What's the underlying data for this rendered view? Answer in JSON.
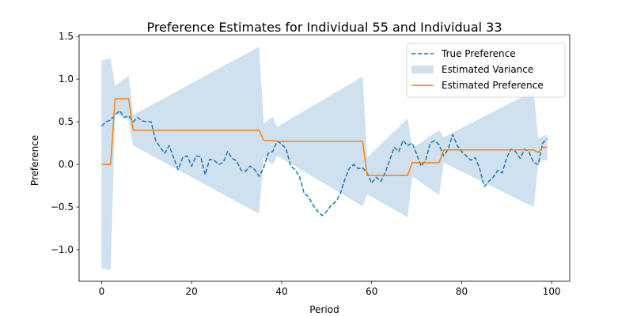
{
  "chart_data": {
    "type": "line",
    "title": "Preference Estimates for Individual 55 and Individual 33",
    "xlabel": "Period",
    "ylabel": "Preference",
    "xlim": [
      -5,
      104
    ],
    "ylim": [
      -1.37,
      1.52
    ],
    "x_ticks": [
      0,
      20,
      40,
      60,
      80,
      100
    ],
    "y_ticks": [
      1.5,
      1.0,
      0.5,
      0.0,
      -0.5,
      -1.0
    ],
    "x_tick_labels": [
      "0",
      "20",
      "40",
      "60",
      "80",
      "100"
    ],
    "y_tick_labels": [
      "1.5",
      "1.0",
      "0.5",
      "0.0",
      "−0.5",
      "−1.0"
    ],
    "grid": false,
    "legend_position": "top-right",
    "legend": [
      {
        "label": "True Preference",
        "kind": "dashed-line",
        "color": "#1f77b4"
      },
      {
        "label": "Estimated Variance",
        "kind": "patch",
        "color": "#cfe1ef"
      },
      {
        "label": "Estimated Preference",
        "kind": "line",
        "color": "#ff7f0e"
      }
    ],
    "series": [
      {
        "name": "True Preference",
        "style": "dashed",
        "color": "#1f77b4",
        "x": [
          0,
          1,
          2,
          3,
          4,
          5,
          6,
          7,
          8,
          9,
          10,
          11,
          12,
          13,
          14,
          15,
          16,
          17,
          18,
          19,
          20,
          21,
          22,
          23,
          24,
          25,
          26,
          27,
          28,
          29,
          30,
          31,
          32,
          33,
          34,
          35,
          36,
          37,
          38,
          39,
          40,
          41,
          42,
          43,
          44,
          45,
          46,
          47,
          48,
          49,
          50,
          51,
          52,
          53,
          54,
          55,
          56,
          57,
          58,
          59,
          60,
          61,
          62,
          63,
          64,
          65,
          66,
          67,
          68,
          69,
          70,
          71,
          72,
          73,
          74,
          75,
          76,
          77,
          78,
          79,
          80,
          81,
          82,
          83,
          84,
          85,
          86,
          87,
          88,
          89,
          90,
          91,
          92,
          93,
          94,
          95,
          96,
          97,
          98,
          99
        ],
        "y": [
          0.45,
          0.5,
          0.52,
          0.58,
          0.63,
          0.55,
          0.57,
          0.5,
          0.55,
          0.51,
          0.5,
          0.5,
          0.28,
          0.2,
          0.13,
          0.22,
          0.08,
          -0.06,
          0.08,
          0.1,
          -0.02,
          0.1,
          0.09,
          -0.12,
          0.06,
          0.05,
          0.0,
          0.02,
          0.15,
          0.07,
          0.04,
          -0.07,
          -0.08,
          -0.02,
          -0.06,
          -0.14,
          -0.04,
          0.13,
          0.15,
          0.27,
          0.24,
          0.18,
          -0.02,
          -0.06,
          -0.15,
          -0.34,
          -0.38,
          -0.48,
          -0.55,
          -0.6,
          -0.55,
          -0.48,
          -0.44,
          -0.35,
          -0.18,
          -0.05,
          0.0,
          -0.05,
          -0.04,
          -0.1,
          -0.22,
          -0.15,
          -0.2,
          -0.1,
          0.05,
          0.2,
          0.15,
          0.28,
          0.22,
          0.25,
          0.12,
          -0.02,
          0.05,
          0.25,
          0.28,
          0.23,
          0.1,
          0.18,
          0.35,
          0.22,
          0.15,
          0.1,
          0.05,
          0.08,
          -0.05,
          -0.26,
          -0.2,
          -0.15,
          -0.07,
          -0.1,
          0.08,
          0.18,
          0.15,
          0.07,
          0.18,
          0.14,
          0.02,
          0.0,
          0.25,
          0.3
        ]
      },
      {
        "name": "Estimated Preference",
        "style": "solid",
        "color": "#ff7f0e",
        "x": [
          0,
          2,
          3,
          6,
          7,
          35,
          36,
          38,
          39,
          58,
          59,
          68,
          69,
          75,
          76,
          96,
          97,
          98,
          99
        ],
        "y": [
          0.0,
          0.0,
          0.77,
          0.77,
          0.4,
          0.4,
          0.28,
          0.28,
          0.27,
          0.27,
          -0.13,
          -0.13,
          0.02,
          0.02,
          0.17,
          0.17,
          0.14,
          0.2,
          0.2
        ]
      }
    ],
    "variance_band": {
      "name": "Estimated Variance",
      "color": "#cfe1ef",
      "x": [
        0,
        2,
        3,
        6,
        7,
        35,
        36,
        38,
        39,
        58,
        59,
        68,
        69,
        75,
        76,
        96,
        97,
        98,
        99
      ],
      "upper": [
        1.22,
        1.24,
        0.92,
        1.04,
        0.58,
        1.38,
        0.48,
        0.56,
        0.44,
        1.03,
        0.08,
        0.54,
        0.19,
        0.4,
        0.32,
        0.86,
        0.3,
        0.33,
        0.35
      ],
      "lower": [
        -1.22,
        -1.24,
        0.6,
        0.52,
        0.22,
        -0.58,
        0.08,
        0.0,
        0.1,
        -0.49,
        -0.35,
        -0.62,
        -0.14,
        -0.36,
        0.02,
        -0.5,
        0.0,
        0.05,
        0.05
      ]
    }
  }
}
